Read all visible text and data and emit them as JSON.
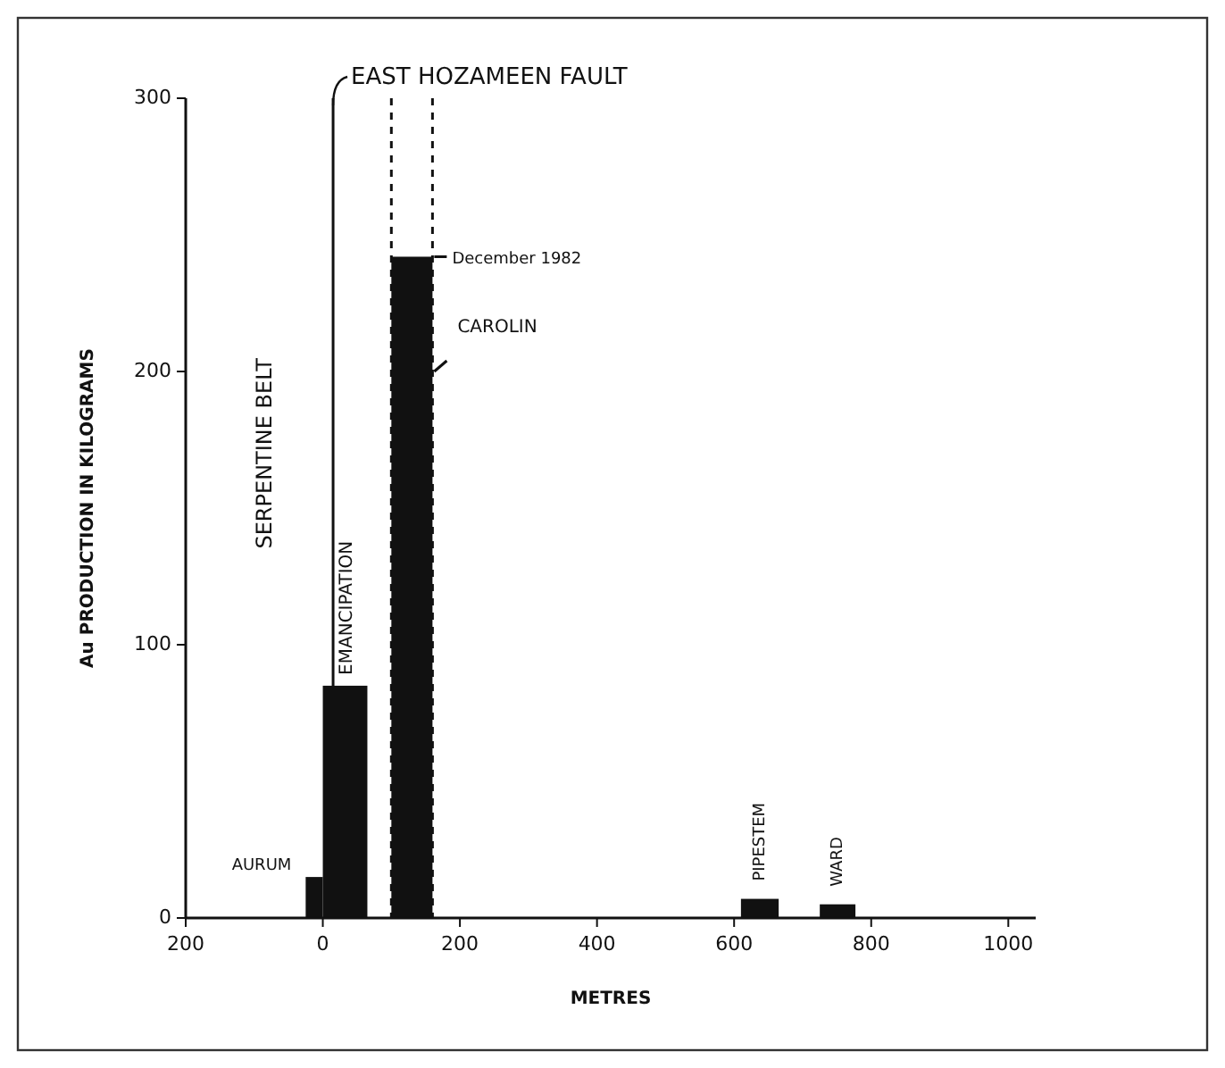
{
  "chart_data": {
    "type": "histogram",
    "xlabel": "METRES",
    "ylabel": "Au PRODUCTION IN KILOGRAMS",
    "bins": [
      -25,
      0,
      65,
      100,
      160,
      610,
      665,
      725,
      777
    ],
    "values": [
      15,
      85,
      0,
      242,
      0,
      7,
      0,
      5
    ],
    "color": "#111111",
    "xlim": [
      -200,
      1040
    ],
    "ylim": [
      0,
      300
    ],
    "xticks": [
      {
        "value": -200,
        "label": "200"
      },
      0,
      200,
      400,
      600,
      800,
      1000
    ],
    "yticks": [
      0,
      100,
      200,
      300
    ],
    "grid": false,
    "ref_lines": [
      {
        "axis": "x",
        "value": 15,
        "label": "EAST HOZAMEEN FAULT",
        "line_style": "solid"
      },
      {
        "axis": "x",
        "value": 100,
        "label": null,
        "line_style": "dashed"
      },
      {
        "axis": "x",
        "value": 160,
        "label": null,
        "line_style": "dashed"
      }
    ],
    "annotations": [
      "SERPENTINE BELT",
      {
        "text": "AURUM",
        "x": -25,
        "y": 15
      },
      {
        "text": "EMANCIPATION",
        "x": 35,
        "y": 85
      },
      {
        "text": "December 1982",
        "x": 160,
        "y": 242
      },
      {
        "text": "CAROLIN",
        "x": 160,
        "y": 200
      },
      {
        "text": "PIPESTEM",
        "x": 637,
        "y": 7
      },
      {
        "text": "WARD",
        "x": 751,
        "y": 5
      }
    ]
  }
}
